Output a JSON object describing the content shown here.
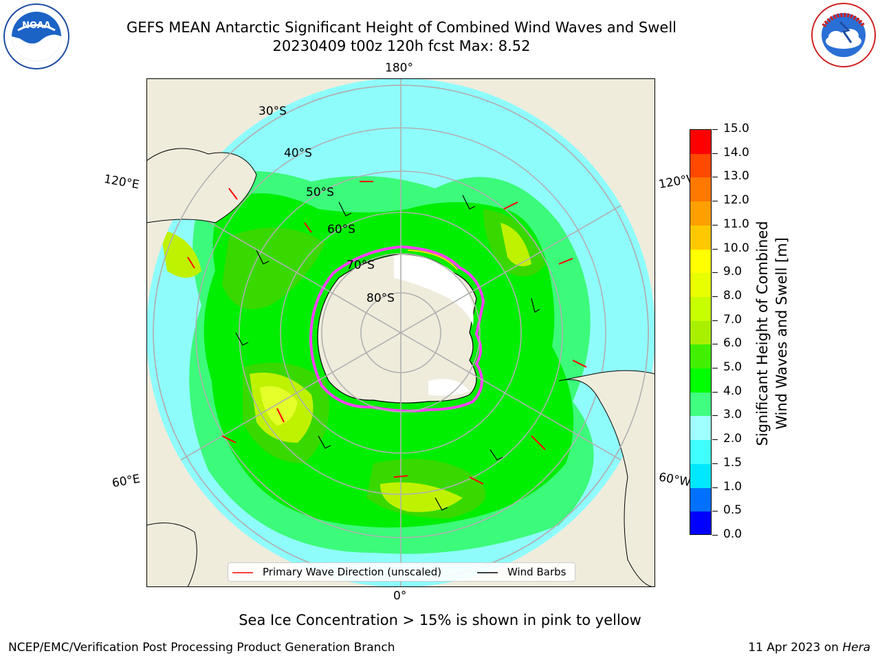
{
  "title": {
    "line1": "GEFS MEAN Antarctic Significant Height of Combined Wind Waves and Swell",
    "line2": "20230409 t00z 120h fcst   Max: 8.52"
  },
  "logos": {
    "left": {
      "name": "noaa-logo",
      "text": "NOAA",
      "ring_text": "NATIONAL OCEANIC AND ATMOSPHERIC ADMINISTRATION · U.S. DEPARTMENT OF COMMERCE"
    },
    "right": {
      "name": "nws-logo",
      "ring_text": "NATIONAL WEATHER SERVICE"
    }
  },
  "map": {
    "projection": "south-polar-stereographic",
    "meridian_labels": {
      "top": "180°",
      "bottom": "0°",
      "left_upper": "120°E",
      "left_lower": "60°E",
      "right_upper": "120°W",
      "right_lower": "60°W"
    },
    "latitude_labels": [
      "30°S",
      "40°S",
      "50°S",
      "60°S",
      "70°S",
      "80°S"
    ],
    "colors": {
      "land": "#efecdc",
      "ocean_low": "#8ffcfc",
      "ice_edge": "#ff40ff",
      "ice_edge_yellow": "#ffd700"
    }
  },
  "legend": {
    "primary_wave": "Primary Wave Direction (unscaled)",
    "wind_barbs": "Wind Barbs"
  },
  "colorbar": {
    "title_line1": "Significant Height of Combined",
    "title_line2": "Wind Waves and Swell [m]",
    "ticks": [
      "0.0",
      "0.5",
      "1.0",
      "1.5",
      "2.0",
      "3.0",
      "4.0",
      "5.0",
      "6.0",
      "7.0",
      "8.0",
      "9.0",
      "10.0",
      "11.0",
      "12.0",
      "13.0",
      "14.0",
      "15.0"
    ],
    "colors": [
      "#0000ff",
      "#0070ff",
      "#00e8ff",
      "#40ffff",
      "#a0ffff",
      "#40ff80",
      "#00ff00",
      "#40f000",
      "#a8f000",
      "#c8ff00",
      "#e8ff00",
      "#ffff00",
      "#ffc800",
      "#ffa000",
      "#ff7800",
      "#ff4800",
      "#ff0000"
    ]
  },
  "footnote": "Sea Ice Concentration > 15% is shown in pink to yellow",
  "credit_left": "NCEP/EMC/Verification Post Processing Product Generation Branch",
  "credit_right_date": "11 Apr 2023 on ",
  "credit_right_host": "Hera"
}
